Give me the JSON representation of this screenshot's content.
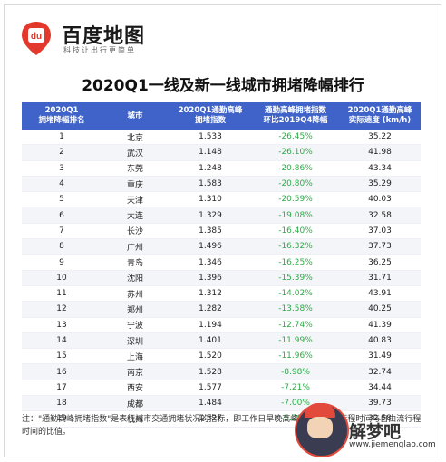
{
  "brand": {
    "name": "百度地图",
    "slogan": "科技让出行更简单",
    "logo_text": "du"
  },
  "title": "2020Q1一线及新一线城市拥堵降幅排行",
  "table": {
    "headers": [
      "2020Q1\n拥堵降幅排名",
      "城市",
      "2020Q1通勤高峰\n拥堵指数",
      "通勤高峰拥堵指数\n环比2019Q4降幅",
      "2020Q1通勤高峰\n实际速度 (km/h)"
    ],
    "rows": [
      [
        "1",
        "北京",
        "1.533",
        "-26.45%",
        "35.22"
      ],
      [
        "2",
        "武汉",
        "1.148",
        "-26.10%",
        "41.98"
      ],
      [
        "3",
        "东莞",
        "1.248",
        "-20.86%",
        "43.34"
      ],
      [
        "4",
        "重庆",
        "1.583",
        "-20.80%",
        "35.29"
      ],
      [
        "5",
        "天津",
        "1.310",
        "-20.59%",
        "40.03"
      ],
      [
        "6",
        "大连",
        "1.329",
        "-19.08%",
        "32.58"
      ],
      [
        "7",
        "长沙",
        "1.385",
        "-16.40%",
        "37.03"
      ],
      [
        "8",
        "广州",
        "1.496",
        "-16.32%",
        "37.73"
      ],
      [
        "9",
        "青岛",
        "1.346",
        "-16.25%",
        "36.25"
      ],
      [
        "10",
        "沈阳",
        "1.396",
        "-15.39%",
        "31.71"
      ],
      [
        "11",
        "苏州",
        "1.312",
        "-14.02%",
        "43.91"
      ],
      [
        "12",
        "郑州",
        "1.282",
        "-13.58%",
        "40.25"
      ],
      [
        "13",
        "宁波",
        "1.194",
        "-12.74%",
        "41.39"
      ],
      [
        "14",
        "深圳",
        "1.401",
        "-11.99%",
        "40.83"
      ],
      [
        "15",
        "上海",
        "1.520",
        "-11.96%",
        "31.49"
      ],
      [
        "16",
        "南京",
        "1.528",
        "-8.98%",
        "32.74"
      ],
      [
        "17",
        "西安",
        "1.577",
        "-7.21%",
        "34.44"
      ],
      [
        "18",
        "成都",
        "1.484",
        "-7.00%",
        "39.73"
      ],
      [
        "19",
        "杭州",
        "1.527",
        "-5.29%",
        "32.58"
      ]
    ]
  },
  "note": "注：\"通勤高峰拥堵指数\"是表征城市交通拥堵状况的指标，即工作日早晚高峰期间，实际行程时间与自由流行程时间的比值。",
  "watermark": {
    "text": "解梦吧",
    "url": "www.jiemenglao.com"
  },
  "colors": {
    "header_bg": "#3f63c8",
    "decrease_text": "#2daa46",
    "logo_red": "#e2392c"
  }
}
